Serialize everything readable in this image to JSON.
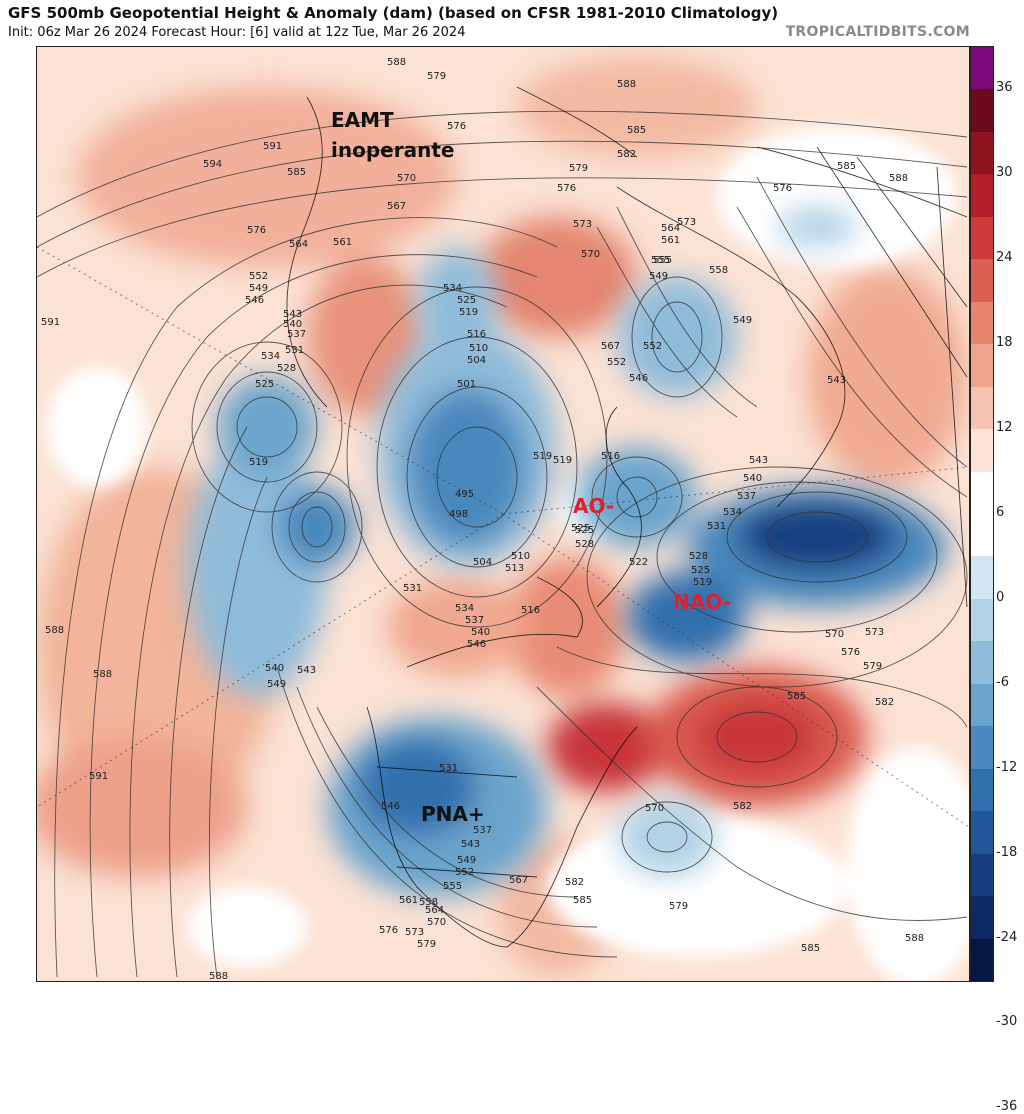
{
  "header": {
    "title": "GFS 500mb Geopotential Height & Anomaly (dam) (based on CFSR 1981-2010 Climatology)",
    "subtitle": "Init: 06z Mar 26 2024   Forecast Hour: [6]   valid at 12z Tue, Mar 26 2024",
    "credit": "TROPICALTIDBITS.COM"
  },
  "annotations": {
    "eamt_line1": "EAMT",
    "eamt_line2": "inoperante",
    "ao": "AO-",
    "nao": "NAO-",
    "pna": "PNA+"
  },
  "contour_labels": [
    "588",
    "579",
    "576",
    "588",
    "585",
    "582",
    "585",
    "588",
    "594",
    "591",
    "585",
    "570",
    "576",
    "579",
    "567",
    "576",
    "573",
    "570",
    "564",
    "561",
    "555",
    "549",
    "558",
    "576",
    "564",
    "561",
    "552",
    "549",
    "546",
    "543",
    "540",
    "537",
    "534",
    "531",
    "528",
    "525",
    "519",
    "591",
    "534",
    "525",
    "519",
    "516",
    "510",
    "504",
    "501",
    "495",
    "498",
    "504",
    "510",
    "513",
    "516",
    "519",
    "525",
    "528",
    "531",
    "534",
    "537",
    "540",
    "546",
    "552",
    "555",
    "549",
    "543",
    "573",
    "567",
    "552",
    "546",
    "543",
    "540",
    "537",
    "534",
    "531",
    "528",
    "525",
    "522",
    "519",
    "516",
    "519",
    "525",
    "588",
    "588",
    "540",
    "543",
    "549",
    "591",
    "531",
    "546",
    "537",
    "543",
    "549",
    "552",
    "555",
    "561",
    "558",
    "564",
    "567",
    "570",
    "573",
    "576",
    "579",
    "585",
    "582",
    "585",
    "570",
    "576",
    "573",
    "570",
    "579",
    "582",
    "579",
    "582",
    "585",
    "588",
    "588"
  ],
  "colorbar": {
    "labels": [
      "36",
      "30",
      "24",
      "18",
      "12",
      "6",
      "0",
      "-6",
      "-12",
      "-18",
      "-24",
      "-30",
      "-36"
    ],
    "colors": [
      "#7a0a7a",
      "#6b0a1a",
      "#8e1420",
      "#b3202a",
      "#cc3d3a",
      "#db5f52",
      "#e7836f",
      "#efa48e",
      "#f5c4b0",
      "#fbe2d4",
      "#ffffff",
      "#ffffff",
      "#d3e6f1",
      "#b2d2e6",
      "#8fbcda",
      "#6ba4cc",
      "#4a88bd",
      "#3070ad",
      "#1f579a",
      "#153f80",
      "#0e2a64",
      "#071745"
    ]
  }
}
